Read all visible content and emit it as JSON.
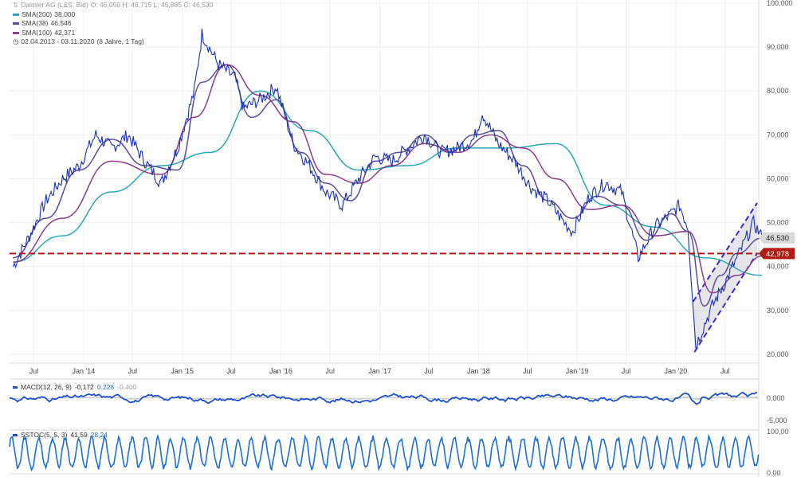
{
  "legend": {
    "ticker": "Daimler AG (L&S, Bid)",
    "ohlc": "O: 46,050  H: 46,715  L: 45,885  C: 46,530",
    "sma200": "SMA(200)",
    "sma200_val": "38,000",
    "sma38": "SMA(38)",
    "sma38_val": "46,546",
    "sma100": "SMA(100)",
    "sma100_val": "42,371",
    "range": "02.04.2013 - 03.11.2020",
    "range_detail": "(8 Jahre, 1 Tag)"
  },
  "colors": {
    "price": "#1a2fb5",
    "sma200": "#2aa8b8",
    "sma38": "#5a4c9a",
    "sma100": "#8a3e8a",
    "support": "#b01a10",
    "channel": "#3a2ad0",
    "macd": "#1d4fcf",
    "macd_hist": "#b8bcc4",
    "stoch": "#1d6fd6"
  },
  "price_labels": {
    "last": "46,530",
    "support": "42,978"
  },
  "macd": {
    "label": "MACD(12, 26, 9)",
    "v1": "-0,172",
    "v2": "0,228",
    "v3": "-0,400",
    "ticks": [
      "0,000",
      "-5,000"
    ]
  },
  "stoch": {
    "label": "SSTOC(5, 5, 3)",
    "v1": "41,59",
    "v2": "28,24",
    "ticks": [
      "100,00",
      "0,00"
    ]
  },
  "chart_data": {
    "type": "line",
    "title": "Daimler AG (L&S, Bid)",
    "x_range": [
      "2013-04-02",
      "2020-11-03"
    ],
    "x_ticks": [
      "Jul",
      "Jan '14",
      "Jul",
      "Jan '15",
      "Jul",
      "Jan '16",
      "Jul",
      "Jan '17",
      "Jul",
      "Jan '18",
      "Jul",
      "Jan '19",
      "Jul",
      "Jan '20",
      "Jul"
    ],
    "y_ticks": [
      "20,000",
      "30,000",
      "40,000",
      "50,000",
      "60,000",
      "70,000",
      "80,000",
      "90,000",
      "100,000"
    ],
    "ylim": [
      18,
      100
    ],
    "support_level": 42.978,
    "last_price": 46.53,
    "series": [
      {
        "name": "Daimler AG (L&S, Bid)",
        "x": [
          "2013-04",
          "2013-06",
          "2013-08",
          "2013-10",
          "2013-12",
          "2014-02",
          "2014-04",
          "2014-06",
          "2014-08",
          "2014-10",
          "2014-12",
          "2015-02",
          "2015-03",
          "2015-05",
          "2015-07",
          "2015-08",
          "2015-10",
          "2015-12",
          "2016-02",
          "2016-04",
          "2016-06",
          "2016-08",
          "2016-10",
          "2016-12",
          "2017-02",
          "2017-04",
          "2017-06",
          "2017-08",
          "2017-10",
          "2017-12",
          "2018-01",
          "2018-03",
          "2018-05",
          "2018-07",
          "2018-09",
          "2018-11",
          "2018-12",
          "2019-02",
          "2019-04",
          "2019-06",
          "2019-08",
          "2019-10",
          "2019-12",
          "2020-01",
          "2020-02",
          "2020-03",
          "2020-05",
          "2020-07",
          "2020-09",
          "2020-10",
          "2020-11"
        ],
        "y": [
          40,
          47,
          55,
          60,
          63,
          70,
          67,
          70,
          64,
          59,
          67,
          80,
          93,
          86,
          83,
          76,
          78,
          81,
          68,
          63,
          57,
          54,
          60,
          65,
          64,
          67,
          70,
          66,
          67,
          69,
          75,
          68,
          64,
          58,
          55,
          50,
          48,
          56,
          59,
          57,
          42,
          49,
          52,
          54,
          49,
          22,
          31,
          38,
          46,
          50,
          46.5
        ]
      },
      {
        "name": "SMA(200)",
        "x": [
          "2013-04",
          "2013-10",
          "2014-04",
          "2014-10",
          "2015-04",
          "2015-10",
          "2016-04",
          "2016-10",
          "2017-04",
          "2017-10",
          "2018-04",
          "2018-10",
          "2019-04",
          "2019-10",
          "2020-04",
          "2020-11"
        ],
        "y": [
          41,
          47,
          57,
          63,
          66,
          80,
          71,
          62,
          63,
          67,
          67,
          68,
          54,
          49,
          42,
          38
        ]
      },
      {
        "name": "SMA(38)",
        "x": [
          "2013-04",
          "2013-08",
          "2013-12",
          "2014-04",
          "2014-08",
          "2014-12",
          "2015-03",
          "2015-06",
          "2015-09",
          "2015-12",
          "2016-03",
          "2016-06",
          "2016-09",
          "2016-12",
          "2017-03",
          "2017-06",
          "2017-09",
          "2017-12",
          "2018-03",
          "2018-06",
          "2018-09",
          "2018-12",
          "2019-03",
          "2019-06",
          "2019-09",
          "2019-12",
          "2020-02",
          "2020-04",
          "2020-06",
          "2020-08",
          "2020-11"
        ],
        "y": [
          42,
          51,
          62,
          69,
          63,
          62,
          82,
          86,
          74,
          78,
          66,
          59,
          55,
          64,
          66,
          70,
          66,
          70,
          71,
          63,
          55,
          51,
          56,
          54,
          46,
          52,
          48,
          31,
          38,
          43,
          46.5
        ]
      },
      {
        "name": "SMA(100)",
        "x": [
          "2013-04",
          "2013-10",
          "2014-04",
          "2014-10",
          "2015-02",
          "2015-06",
          "2015-10",
          "2016-02",
          "2016-06",
          "2016-10",
          "2017-02",
          "2017-06",
          "2017-10",
          "2018-02",
          "2018-06",
          "2018-10",
          "2019-02",
          "2019-06",
          "2019-10",
          "2020-02",
          "2020-05",
          "2020-08",
          "2020-11"
        ],
        "y": [
          41,
          51,
          64,
          61,
          74,
          86,
          79,
          73,
          61,
          59,
          63,
          68,
          66,
          70,
          67,
          60,
          53,
          54,
          47,
          48,
          34,
          38,
          42.4
        ]
      }
    ]
  }
}
